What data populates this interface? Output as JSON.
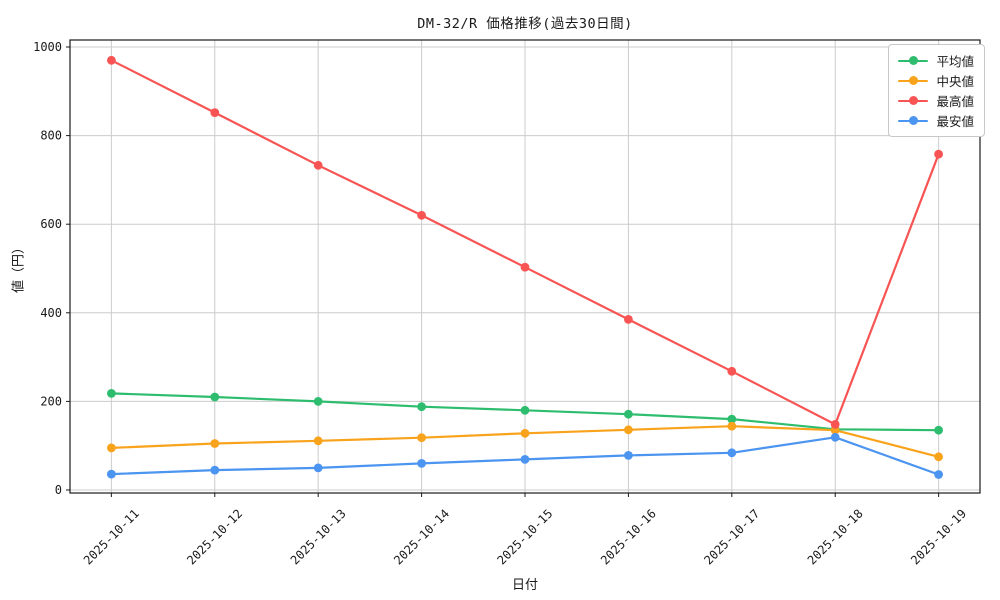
{
  "chart_data": {
    "type": "line",
    "title": "DM-32/R 価格推移(過去30日間)",
    "xlabel": "日付",
    "ylabel": "値（円）",
    "x": [
      "2025-10-11",
      "2025-10-12",
      "2025-10-13",
      "2025-10-14",
      "2025-10-15",
      "2025-10-16",
      "2025-10-17",
      "2025-10-18",
      "2025-10-19"
    ],
    "series": [
      {
        "name": "平均値",
        "color": "#2ebd6e",
        "values": [
          218,
          210,
          200,
          188,
          180,
          171,
          160,
          137,
          135
        ]
      },
      {
        "name": "中央値",
        "color": "#f9a21b",
        "values": [
          95,
          105,
          111,
          118,
          128,
          136,
          144,
          135,
          75
        ]
      },
      {
        "name": "最高値",
        "color": "#f85454",
        "values": [
          970,
          852,
          733,
          620,
          503,
          385,
          268,
          148,
          758
        ]
      },
      {
        "name": "最安値",
        "color": "#4b94ef",
        "values": [
          36,
          45,
          50,
          60,
          69,
          78,
          84,
          119,
          35
        ]
      }
    ],
    "ylim": [
      0,
      1000
    ],
    "yticks": [
      0,
      200,
      400,
      600,
      800,
      1000
    ],
    "grid": true,
    "legend_position": "top-right",
    "colors": {
      "grid": "#cccccc",
      "axis": "#1a1a1a",
      "text": "#1a1a1a",
      "background": "#ffffff",
      "legend_border": "#c8c8c8"
    }
  }
}
